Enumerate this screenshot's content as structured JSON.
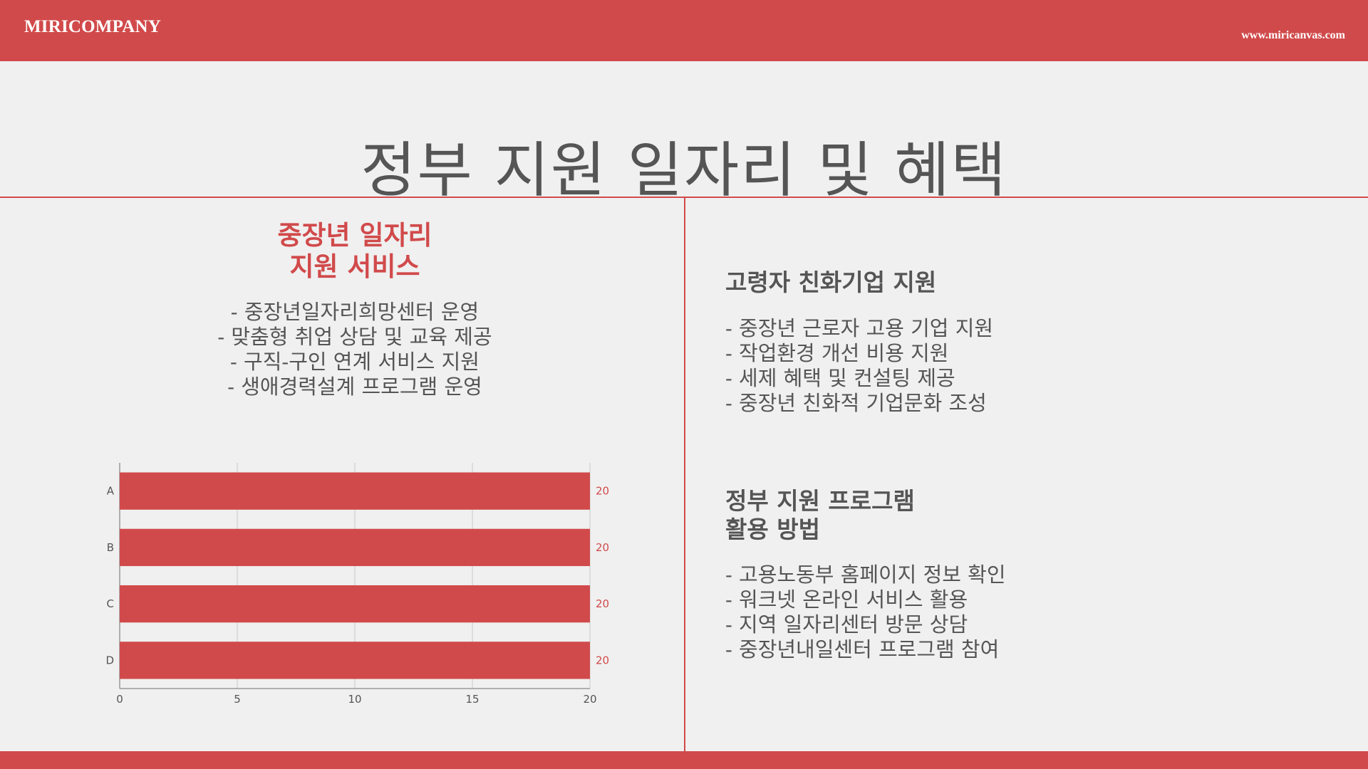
{
  "header": {
    "brand": "MIRICOMPANY",
    "url": "www.miricanvas.com"
  },
  "title": "정부 지원 일자리 및 혜택",
  "left": {
    "heading_lines": [
      "중장년 일자리",
      "지원 서비스"
    ],
    "items": [
      "- 중장년일자리희망센터 운영",
      "- 맞춤형 취업 상담 및 교육 제공",
      "- 구직-구인 연계 서비스 지원",
      "- 생애경력설계 프로그램 운영"
    ]
  },
  "right": {
    "section1": {
      "heading": "고령자 친화기업 지원",
      "items": [
        "- 중장년 근로자 고용 기업 지원",
        "- 작업환경 개선 비용 지원",
        "- 세제 혜택 및 컨설팅 제공",
        "- 중장년 친화적 기업문화 조성"
      ]
    },
    "section2": {
      "heading_lines": [
        "정부 지원 프로그램",
        "활용 방법"
      ],
      "items": [
        "- 고용노동부 홈페이지 정보 확인",
        "- 워크넷 온라인 서비스 활용",
        "- 지역 일자리센터 방문 상담",
        "- 중장년내일센터 프로그램 참여"
      ]
    }
  },
  "colors": {
    "accent": "#d14a4b",
    "text": "#555555",
    "background": "#f0f0f0"
  },
  "chart_data": {
    "type": "bar",
    "orientation": "horizontal",
    "categories": [
      "A",
      "B",
      "C",
      "D"
    ],
    "values": [
      20,
      20,
      20,
      20
    ],
    "xlim": [
      0,
      20
    ],
    "xticks": [
      0,
      5,
      10,
      15,
      20
    ],
    "data_labels": true,
    "grid": true,
    "color": "#d14a4b"
  }
}
